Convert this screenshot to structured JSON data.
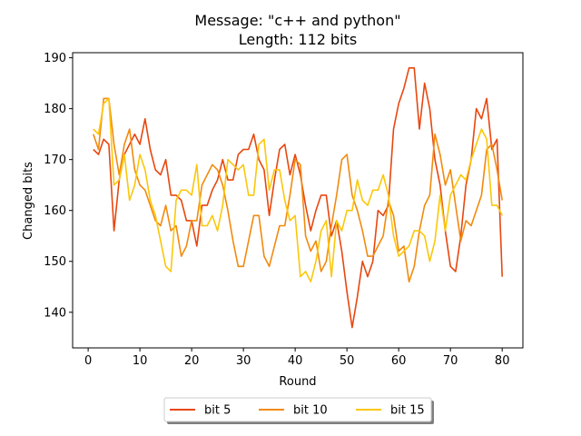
{
  "chart_data": {
    "type": "line",
    "title_line1": "Message: \"c++ and python\"",
    "title_line2": "Length: 112 bits",
    "xlabel": "Round",
    "ylabel": "Changed bits",
    "xlim": [
      -3,
      84
    ],
    "ylim": [
      133,
      191
    ],
    "xticks": [
      0,
      10,
      20,
      30,
      40,
      50,
      60,
      70,
      80
    ],
    "yticks": [
      140,
      150,
      160,
      170,
      180,
      190
    ],
    "grid": false,
    "legend_position": "bottom-center (outside, below axes)",
    "x": [
      1,
      2,
      3,
      4,
      5,
      6,
      7,
      8,
      9,
      10,
      11,
      12,
      13,
      14,
      15,
      16,
      17,
      18,
      19,
      20,
      21,
      22,
      23,
      24,
      25,
      26,
      27,
      28,
      29,
      30,
      31,
      32,
      33,
      34,
      35,
      36,
      37,
      38,
      39,
      40,
      41,
      42,
      43,
      44,
      45,
      46,
      47,
      48,
      49,
      50,
      51,
      52,
      53,
      54,
      55,
      56,
      57,
      58,
      59,
      60,
      61,
      62,
      63,
      64,
      65,
      66,
      67,
      68,
      69,
      70,
      71,
      72,
      73,
      74,
      75,
      76,
      77,
      78,
      79,
      80
    ],
    "series": [
      {
        "name": "bit 5",
        "color": "#e8470f",
        "values": [
          172,
          171,
          174,
          173,
          156,
          166,
          171,
          173,
          175,
          173,
          178,
          172,
          168,
          167,
          170,
          163,
          163,
          162,
          158,
          158,
          153,
          161,
          161,
          164,
          166,
          170,
          166,
          166,
          171,
          172,
          172,
          175,
          170,
          168,
          159,
          166,
          172,
          173,
          167,
          171,
          167,
          161,
          156,
          160,
          163,
          163,
          155,
          158,
          152,
          144,
          137,
          143,
          150,
          147,
          150,
          160,
          159,
          161,
          176,
          181,
          184,
          188,
          188,
          176,
          185,
          180,
          170,
          165,
          156,
          149,
          148,
          155,
          165,
          170,
          180,
          178,
          182,
          172,
          174,
          147
        ]
      },
      {
        "name": "bit 10",
        "color": "#f28a0e",
        "values": [
          175,
          172,
          182,
          182,
          173,
          167,
          173,
          176,
          168,
          165,
          164,
          161,
          158,
          157,
          161,
          156,
          157,
          151,
          153,
          158,
          158,
          165,
          167,
          169,
          168,
          165,
          160,
          154,
          149,
          149,
          154,
          159,
          159,
          151,
          149,
          153,
          157,
          157,
          163,
          170,
          169,
          155,
          152,
          154,
          148,
          150,
          157,
          163,
          170,
          171,
          163,
          160,
          156,
          151,
          151,
          153,
          155,
          162,
          159,
          152,
          153,
          146,
          149,
          156,
          161,
          163,
          175,
          171,
          165,
          168,
          161,
          154,
          158,
          157,
          160,
          163,
          172,
          173,
          168,
          162
        ]
      },
      {
        "name": "bit 15",
        "color": "#fbc70a",
        "values": [
          176,
          175,
          181,
          182,
          165,
          166,
          171,
          162,
          165,
          171,
          168,
          162,
          159,
          154,
          149,
          148,
          162,
          164,
          164,
          163,
          169,
          157,
          157,
          159,
          156,
          161,
          170,
          169,
          168,
          169,
          163,
          163,
          173,
          174,
          164,
          168,
          168,
          162,
          158,
          159,
          147,
          148,
          146,
          150,
          156,
          158,
          147,
          158,
          156,
          160,
          160,
          166,
          162,
          161,
          164,
          164,
          167,
          163,
          155,
          151,
          152,
          153,
          156,
          156,
          155,
          150,
          154,
          163,
          156,
          163,
          165,
          167,
          166,
          170,
          173,
          176,
          174,
          161,
          161,
          159
        ]
      }
    ]
  }
}
